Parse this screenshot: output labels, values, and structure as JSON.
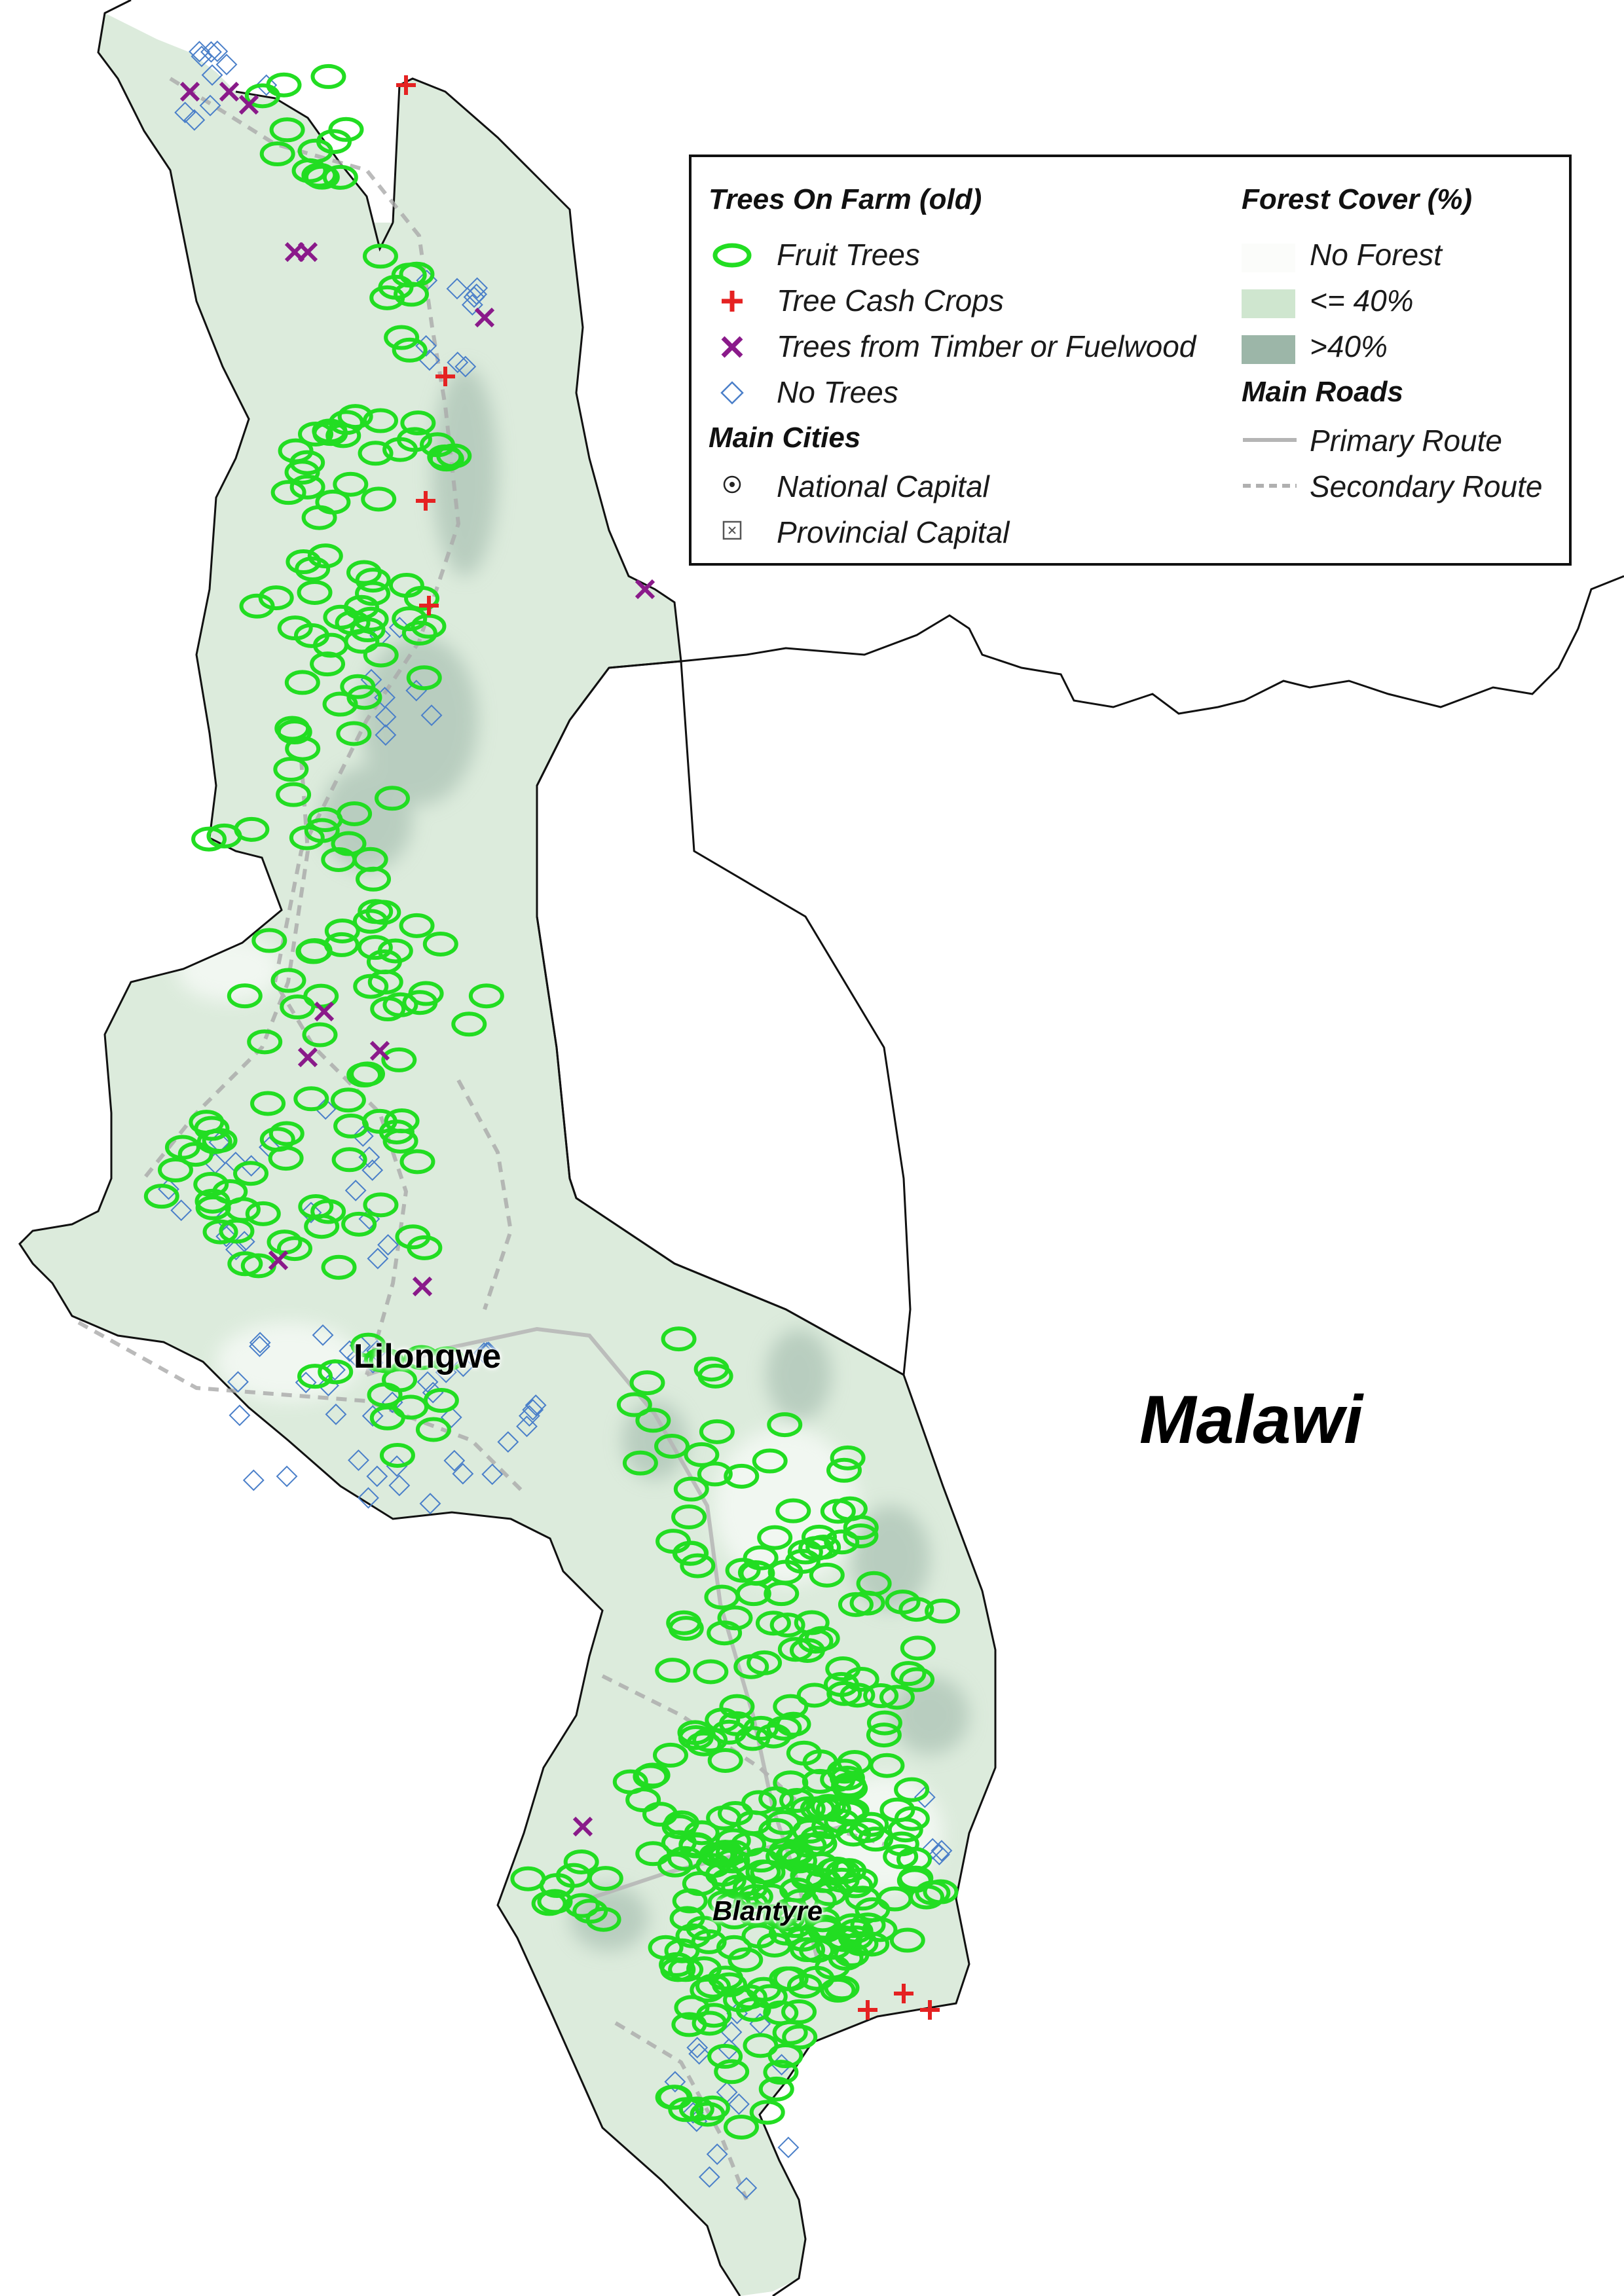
{
  "map": {
    "country_label": "Malawi",
    "colors": {
      "fruit_trees": "#22dd22",
      "tree_cash_crops": "#e52222",
      "timber_fuelwood": "#8a1a8a",
      "no_trees": "#4a7fc9",
      "forest_none": "#fbfcfa",
      "forest_low": "#cfe6cf",
      "forest_high": "#9cb6a8",
      "border": "#111111",
      "road_primary": "#bdbdbd",
      "road_secondary": "#b0b0b0"
    },
    "cities": [
      {
        "name": "Lilongwe",
        "type": "National Capital"
      },
      {
        "name": "Blantyre",
        "type": "Provincial Capital"
      }
    ]
  },
  "legend": {
    "trees_title": "Trees On Farm (old)",
    "trees_items": [
      {
        "label": "Fruit Trees",
        "icon": "green-ellipse-icon"
      },
      {
        "label": "Tree Cash Crops",
        "icon": "red-plus-icon"
      },
      {
        "label": "Trees from Timber or Fuelwood",
        "icon": "purple-x-icon"
      },
      {
        "label": "No Trees",
        "icon": "blue-diamond-icon"
      }
    ],
    "cities_title": "Main Cities",
    "cities_items": [
      {
        "label": "National Capital",
        "icon": "dot-circle-icon"
      },
      {
        "label": "Provincial Capital",
        "icon": "boxed-x-icon"
      }
    ],
    "forest_title": "Forest Cover (%)",
    "forest_items": [
      {
        "label": "No Forest",
        "color": "#fbfcfa"
      },
      {
        "label": "<= 40%",
        "color": "#cfe6cf"
      },
      {
        "label": ">40%",
        "color": "#9cb6a8"
      }
    ],
    "roads_title": "Main Roads",
    "roads_items": [
      {
        "label": "Primary Route",
        "style": "solid"
      },
      {
        "label": "Secondary Route",
        "style": "dashed"
      }
    ]
  }
}
